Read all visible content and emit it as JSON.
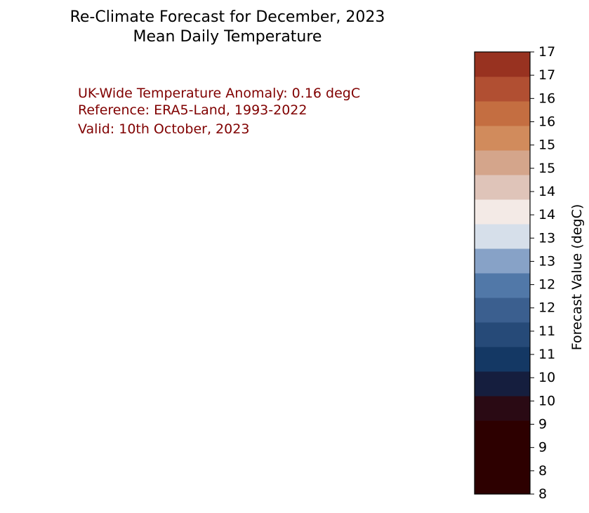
{
  "title": {
    "line1": "Re-Climate Forecast for December, 2023",
    "line2": "Mean Daily Temperature"
  },
  "annotations": {
    "anomaly": "UK-Wide Temperature Anomaly: 0.16 degC",
    "reference": "Reference: ERA5-Land, 1993-2022",
    "valid": "Valid: 10th October, 2023",
    "color": "#800000"
  },
  "chart_data": {
    "type": "heatmap",
    "title": "Re-Climate Forecast for December, 2023 Mean Daily Temperature",
    "colorbar": {
      "label": "Forecast Value (degC)",
      "tick_labels": [
        "8",
        "8",
        "9",
        "9",
        "10",
        "10",
        "11",
        "11",
        "12",
        "12",
        "13",
        "13",
        "14",
        "14",
        "15",
        "15",
        "16",
        "16",
        "17",
        "17"
      ],
      "band_colors": [
        "#2d0000",
        "#2d0000",
        "#2d0000",
        "#2a0a14",
        "#151e3e",
        "#143864",
        "#264a78",
        "#3b5f8f",
        "#5178a8",
        "#87a2c7",
        "#d6dfea",
        "#f3eae6",
        "#dfc4b9",
        "#d4a58b",
        "#d18b5c",
        "#c46e41",
        "#b14f32",
        "#983220"
      ]
    }
  }
}
